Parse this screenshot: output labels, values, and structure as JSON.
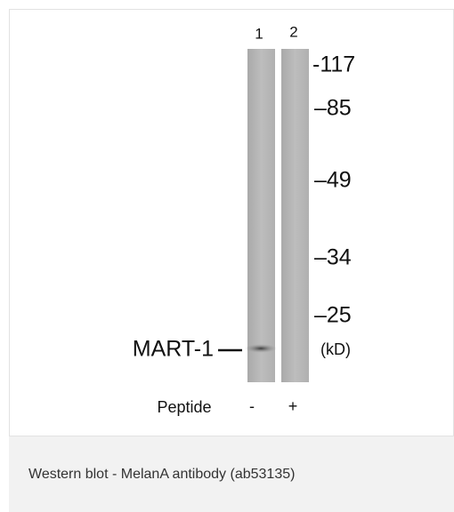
{
  "figure": {
    "lanes": [
      "1",
      "2"
    ],
    "markers": [
      "-117",
      "–85",
      "–49",
      "–34",
      "–25"
    ],
    "unit": "(kD)",
    "band_label": "MART-1",
    "treatment_label": "Peptide",
    "treatment": [
      "-",
      "+"
    ]
  },
  "caption": "Western blot - MelanA antibody (ab53135)"
}
